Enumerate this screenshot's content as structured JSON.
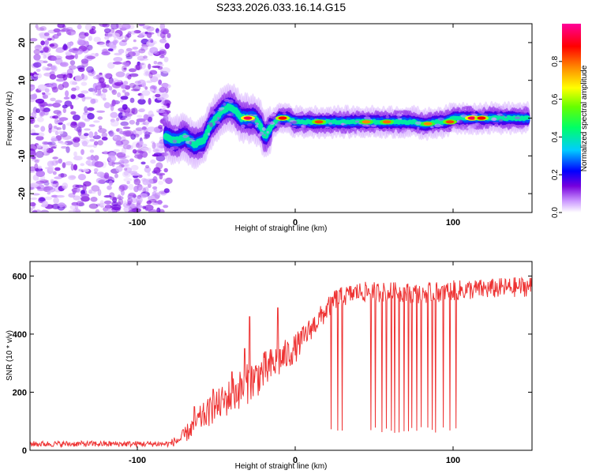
{
  "figure": {
    "title": "S233.2026.033.16.14.G15"
  },
  "chart_data": [
    {
      "type": "heatmap",
      "xlabel": "Height of straight line (km)",
      "ylabel": "Frequency (Hz)",
      "xlim": [
        -168,
        150
      ],
      "ylim": [
        -25,
        25
      ],
      "x_ticks": [
        -100,
        0,
        100
      ],
      "x_tick_labels": [
        "-100",
        "0",
        "100"
      ],
      "y_ticks": [
        -20,
        -10,
        0,
        10,
        20
      ],
      "y_tick_labels": [
        "-20",
        "-10",
        "0",
        "10",
        "20"
      ],
      "colorbar": {
        "label": "Normalized spectral amplitude",
        "range": [
          0,
          1
        ],
        "ticks": [
          0.0,
          0.2,
          0.4,
          0.6,
          0.8
        ],
        "tick_labels": [
          "0.0",
          "0.2",
          "0.4",
          "0.6",
          "0.8"
        ],
        "colormap": [
          "#ffffff",
          "#cc99ff",
          "#7700dd",
          "#0000ff",
          "#00ccff",
          "#00ff66",
          "#66ff00",
          "#ffff00",
          "#ff8800",
          "#ff0000",
          "#ff0099"
        ]
      },
      "noise_region": {
        "x": [
          -168,
          -80
        ],
        "frequency": [
          -25,
          25
        ],
        "typical_amplitude": 0.15
      },
      "ridge": [
        {
          "x": -82,
          "f": -5
        },
        {
          "x": -76,
          "f": -6
        },
        {
          "x": -70,
          "f": -5
        },
        {
          "x": -64,
          "f": -7
        },
        {
          "x": -58,
          "f": -6
        },
        {
          "x": -54,
          "f": -2
        },
        {
          "x": -50,
          "f": 0
        },
        {
          "x": -46,
          "f": 2
        },
        {
          "x": -42,
          "f": 3
        },
        {
          "x": -38,
          "f": 2
        },
        {
          "x": -34,
          "f": 0
        },
        {
          "x": -30,
          "f": 0
        },
        {
          "x": -26,
          "f": 0
        },
        {
          "x": -22,
          "f": -2
        },
        {
          "x": -19,
          "f": -5
        },
        {
          "x": -15,
          "f": -2
        },
        {
          "x": -10,
          "f": 0
        },
        {
          "x": -5,
          "f": 0
        },
        {
          "x": 0,
          "f": -1
        },
        {
          "x": 10,
          "f": -1
        },
        {
          "x": 20,
          "f": -1
        },
        {
          "x": 30,
          "f": -1
        },
        {
          "x": 40,
          "f": -1
        },
        {
          "x": 50,
          "f": -1
        },
        {
          "x": 60,
          "f": -1
        },
        {
          "x": 70,
          "f": -1
        },
        {
          "x": 75,
          "f": -1
        },
        {
          "x": 80,
          "f": -1.5
        },
        {
          "x": 85,
          "f": -1.5
        },
        {
          "x": 90,
          "f": -1
        },
        {
          "x": 95,
          "f": -1
        },
        {
          "x": 100,
          "f": 0
        },
        {
          "x": 110,
          "f": 0
        },
        {
          "x": 120,
          "f": 0
        },
        {
          "x": 130,
          "f": 0
        },
        {
          "x": 140,
          "f": 0
        },
        {
          "x": 148,
          "f": 0
        }
      ],
      "hotspots": [
        {
          "x": -30,
          "f": 0,
          "amplitude": 0.95
        },
        {
          "x": -8,
          "f": 0,
          "amplitude": 0.9
        },
        {
          "x": 15,
          "f": -1,
          "amplitude": 0.85
        },
        {
          "x": 45,
          "f": -1,
          "amplitude": 0.8
        },
        {
          "x": 58,
          "f": -1,
          "amplitude": 0.82
        },
        {
          "x": 84,
          "f": -1.5,
          "amplitude": 0.8
        },
        {
          "x": 98,
          "f": -1,
          "amplitude": 0.85
        },
        {
          "x": 112,
          "f": 0,
          "amplitude": 0.95
        },
        {
          "x": 118,
          "f": 0,
          "amplitude": 0.9
        }
      ]
    },
    {
      "type": "line",
      "xlabel": "Height of straight line (km)",
      "ylabel": "SNR (10 * v/v)",
      "xlim": [
        -168,
        150
      ],
      "ylim": [
        0,
        650
      ],
      "x_ticks": [
        -100,
        0,
        100
      ],
      "x_tick_labels": [
        "-100",
        "0",
        "100"
      ],
      "y_ticks": [
        0,
        200,
        400,
        600
      ],
      "y_tick_labels": [
        "0",
        "200",
        "400",
        "600"
      ],
      "color": "#ee3333",
      "envelope": {
        "x": [
          -168,
          -80,
          -72,
          -60,
          -50,
          -40,
          -30,
          -20,
          -10,
          0,
          10,
          18,
          25,
          40,
          60,
          80,
          100,
          120,
          150
        ],
        "mean": [
          22,
          22,
          40,
          110,
          150,
          190,
          230,
          270,
          310,
          350,
          420,
          470,
          520,
          545,
          545,
          540,
          550,
          555,
          565
        ],
        "spread": [
          10,
          10,
          25,
          45,
          55,
          65,
          70,
          70,
          60,
          50,
          40,
          40,
          35,
          35,
          35,
          35,
          35,
          35,
          35
        ]
      },
      "spikes": [
        {
          "x": -64,
          "y": 150
        },
        {
          "x": -52,
          "y": 210
        },
        {
          "x": -40,
          "y": 270
        },
        {
          "x": -32,
          "y": 350
        },
        {
          "x": -29,
          "y": 460
        },
        {
          "x": -11,
          "y": 490
        }
      ],
      "dropouts": {
        "x": [
          23,
          27,
          30,
          48,
          51,
          55,
          58,
          61,
          63,
          66,
          69,
          72,
          74,
          77,
          80,
          84,
          87,
          89,
          94,
          98,
          102
        ],
        "floor": 60
      }
    }
  ]
}
